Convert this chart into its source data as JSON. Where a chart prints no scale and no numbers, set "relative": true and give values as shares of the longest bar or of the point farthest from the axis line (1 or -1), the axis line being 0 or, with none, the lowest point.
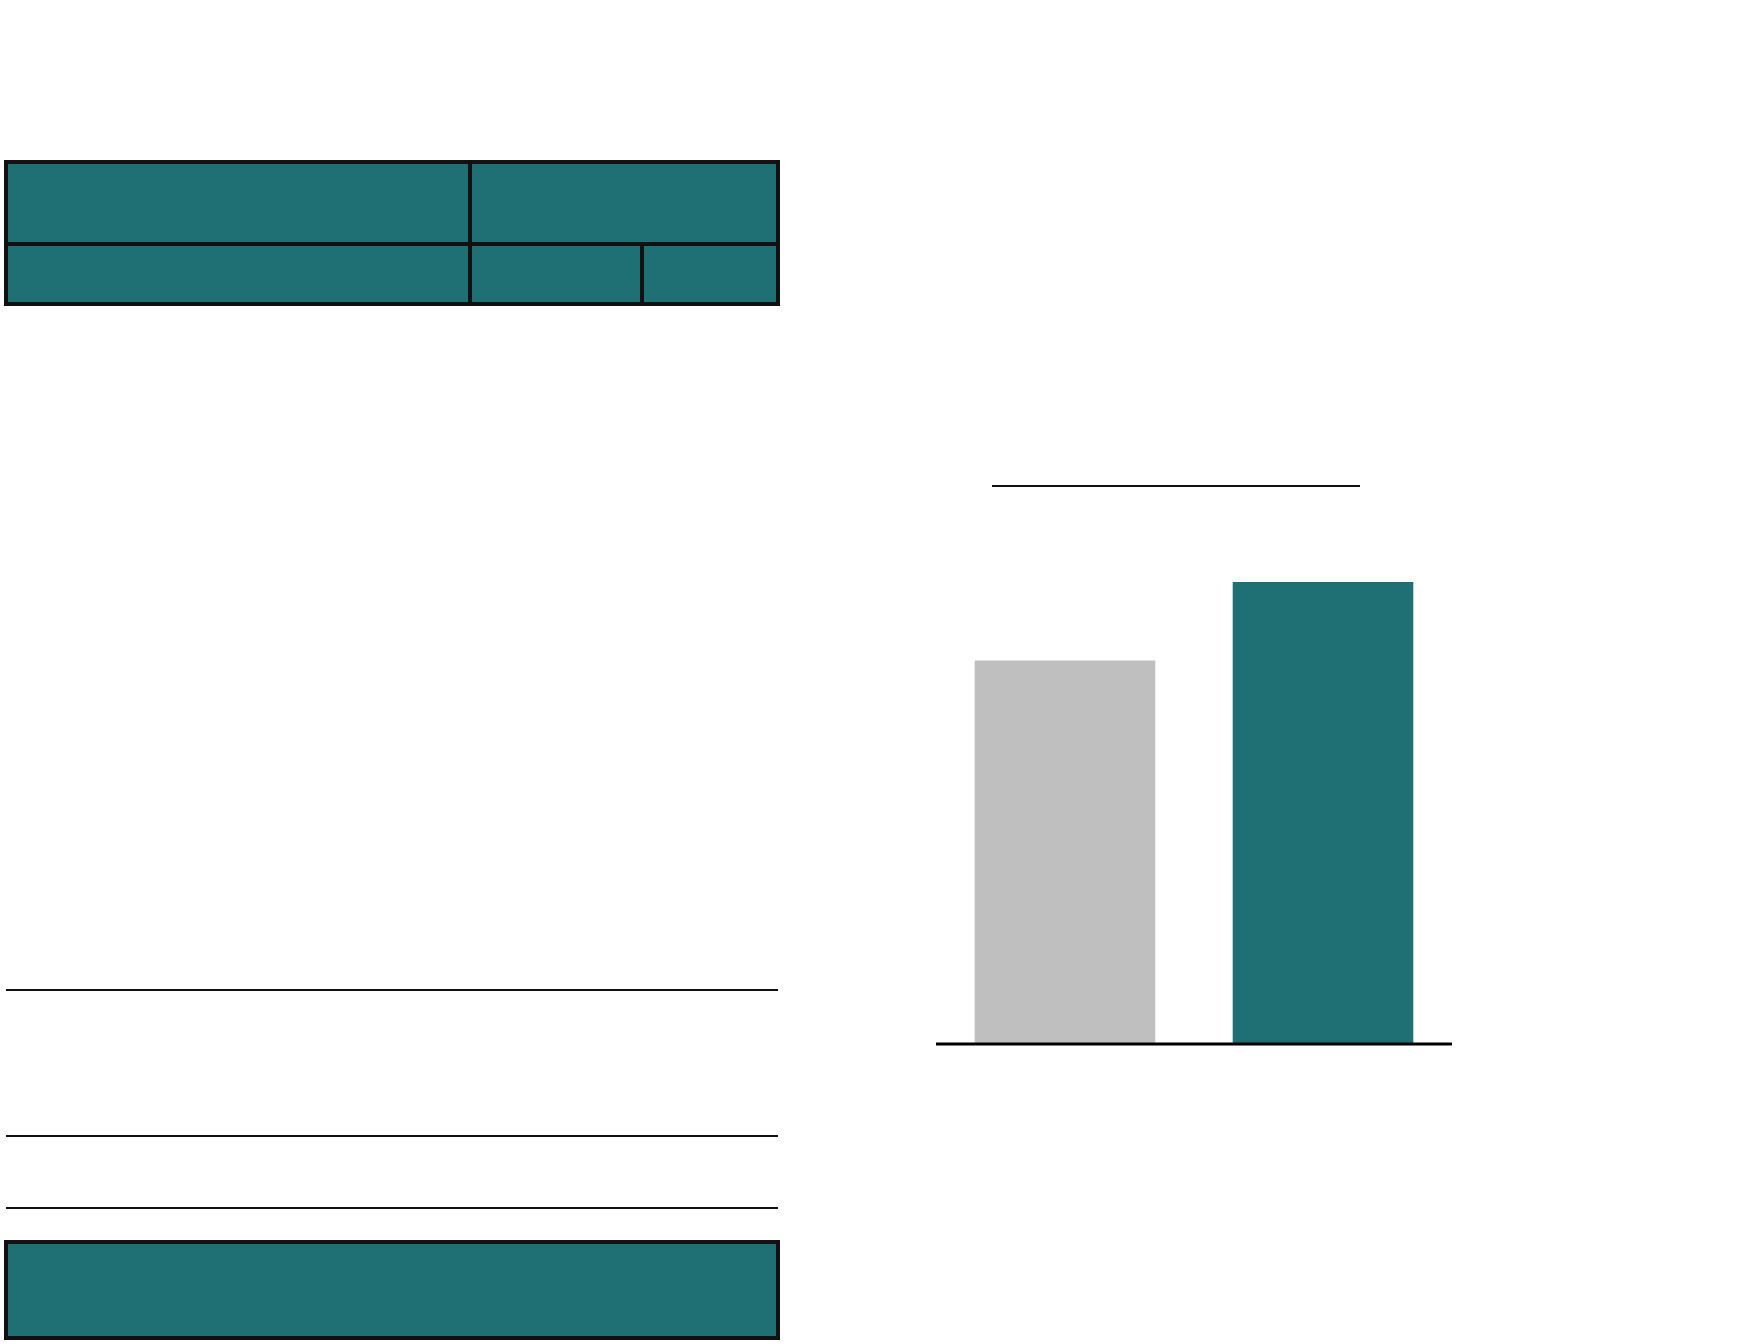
{
  "chart_data": {
    "type": "bar",
    "relative": true,
    "categories": [
      null,
      null
    ],
    "values": [
      0.83,
      1
    ],
    "colors": [
      "#bfbfbf",
      "#1f7074"
    ]
  }
}
